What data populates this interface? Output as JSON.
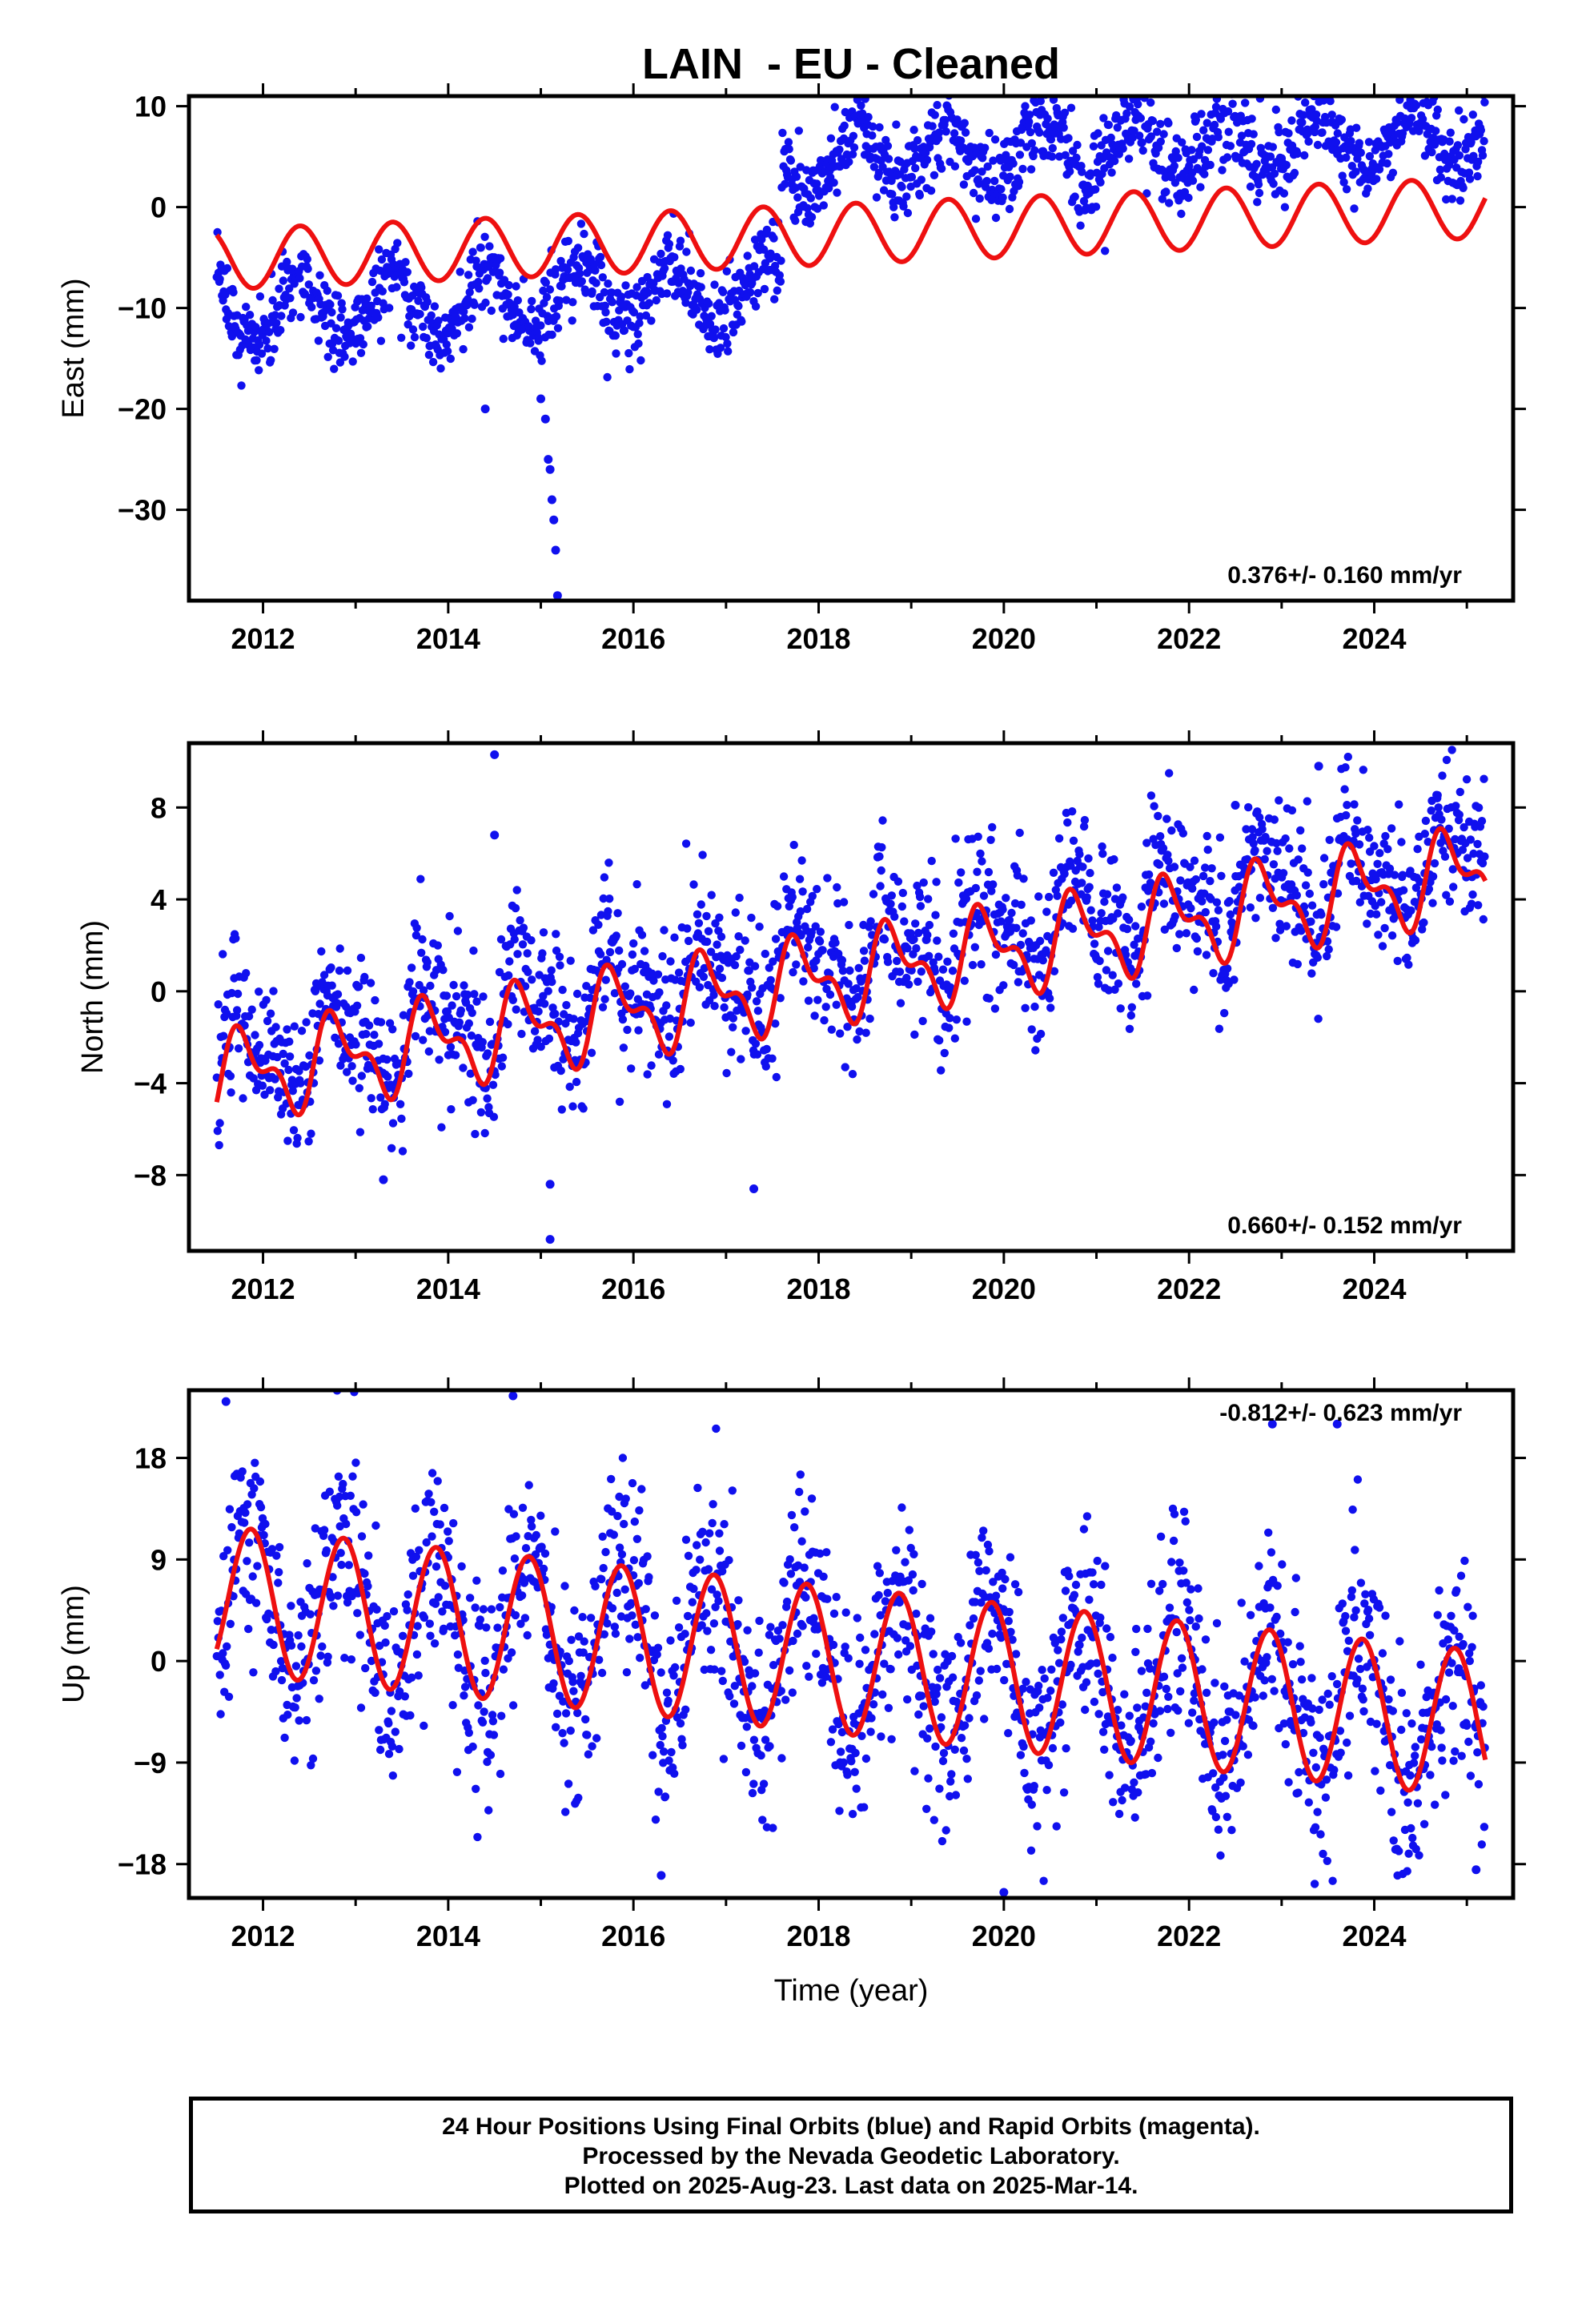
{
  "chart_data": {
    "title": "LAIN  - EU - Cleaned",
    "xlabel": "Time (year)",
    "x_ticks": [
      2012,
      2014,
      2016,
      2018,
      2020,
      2022,
      2024
    ],
    "xlim": [
      2011.2,
      2025.5
    ],
    "colors": {
      "data": "#1010ee",
      "model": "#ee1010"
    },
    "panels": [
      {
        "type": "scatter",
        "ylabel": "East (mm)",
        "ylim": [
          -39,
          11
        ],
        "y_ticks": [
          10,
          0,
          -10,
          -20,
          -30
        ],
        "rate_text": "0.376+/- 0.160 mm/yr",
        "data_range": [
          2011.5,
          2025.2
        ],
        "model": {
          "offset": -5.2,
          "trend": 0.376,
          "amplitude": 3.0,
          "phase": 0.15,
          "half_amp": 0
        },
        "data_offset": -10.5,
        "step": {
          "at": 2017.6,
          "size": 12.5
        },
        "scatter_noise": 2.0,
        "notable_points": [
          {
            "x": 2015.05,
            "y": -21
          },
          {
            "x": 2015.08,
            "y": -25
          },
          {
            "x": 2015.1,
            "y": -26
          },
          {
            "x": 2015.12,
            "y": -29
          },
          {
            "x": 2015.14,
            "y": -31
          },
          {
            "x": 2015.16,
            "y": -34
          },
          {
            "x": 2015.18,
            "y": -38.5
          },
          {
            "x": 2015.0,
            "y": -19
          },
          {
            "x": 2014.4,
            "y": -20
          }
        ]
      },
      {
        "type": "scatter",
        "ylabel": "North (mm)",
        "ylim": [
          -11.3,
          10.8
        ],
        "y_ticks": [
          8,
          4,
          0,
          -4,
          -8
        ],
        "rate_text": "0.660+/- 0.152 mm/yr",
        "data_range": [
          2011.5,
          2025.2
        ],
        "model": {
          "offset": -3.8,
          "trend": 0.66,
          "amplitude": 1.6,
          "phase": 0.55,
          "half_amp": 0.9
        },
        "data_offset": -3.0,
        "step": {
          "at": 0,
          "size": 0
        },
        "scatter_noise": 1.6,
        "notable_points": [
          {
            "x": 2014.5,
            "y": 10.3
          },
          {
            "x": 2014.5,
            "y": 6.8
          },
          {
            "x": 2023.4,
            "y": 9.8
          },
          {
            "x": 2022.5,
            "y": 8.1
          },
          {
            "x": 2015.1,
            "y": -10.8
          },
          {
            "x": 2015.1,
            "y": -8.4
          },
          {
            "x": 2017.3,
            "y": -8.6
          },
          {
            "x": 2013.3,
            "y": -8.2
          }
        ]
      },
      {
        "type": "scatter",
        "ylabel": "Up (mm)",
        "ylim": [
          -21,
          24
        ],
        "y_ticks": [
          18,
          9,
          0,
          -9,
          -18
        ],
        "rate_text": "-0.812+/- 0.623 mm/yr",
        "data_range": [
          2011.5,
          2025.2
        ],
        "model": {
          "offset": 5.5,
          "trend": -0.812,
          "amplitude": 6.5,
          "phase": 0.62,
          "half_amp": 0
        },
        "data_offset": 5.5,
        "step": {
          "at": 0,
          "size": 0
        },
        "scatter_noise": 4.5,
        "notable_points": [
          {
            "x": 2012.8,
            "y": 24
          },
          {
            "x": 2011.6,
            "y": 23
          },
          {
            "x": 2014.7,
            "y": 23.5
          },
          {
            "x": 2022.9,
            "y": 21
          },
          {
            "x": 2023.6,
            "y": 21
          },
          {
            "x": 2020.0,
            "y": -20.5
          },
          {
            "x": 2025.1,
            "y": -18.5
          },
          {
            "x": 2016.3,
            "y": -19
          }
        ]
      }
    ]
  },
  "caption": {
    "line1": "24 Hour Positions Using Final Orbits (blue) and Rapid Orbits (magenta).",
    "line2": "Processed by the Nevada Geodetic Laboratory.",
    "line3": "Plotted on 2025-Aug-23. Last data on 2025-Mar-14."
  }
}
